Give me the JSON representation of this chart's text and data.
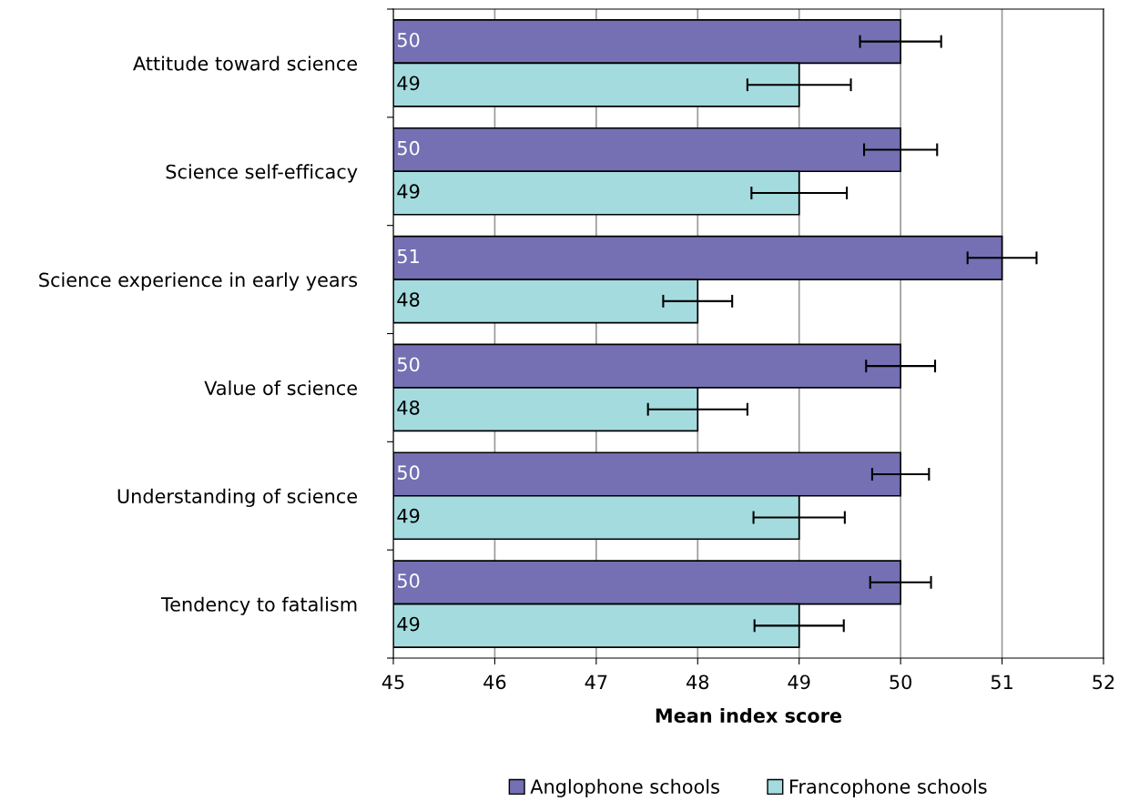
{
  "chart_data": {
    "type": "bar",
    "orientation": "horizontal",
    "xlabel": "Mean index score",
    "categories": [
      "Attitude toward science",
      "Science self-efficacy",
      "Science experience in early years",
      "Value of science",
      "Understanding of science",
      "Tendency to fatalism"
    ],
    "series": [
      {
        "name": "Anglophone schools",
        "color": "#7470b3",
        "values": [
          50,
          50,
          51,
          50,
          50,
          50
        ],
        "errors": [
          0.4,
          0.36,
          0.34,
          0.34,
          0.28,
          0.3
        ]
      },
      {
        "name": "Francophone schools",
        "color": "#a4dbdf",
        "values": [
          49,
          49,
          48,
          48,
          49,
          49
        ],
        "errors": [
          0.51,
          0.47,
          0.34,
          0.49,
          0.45,
          0.44
        ]
      }
    ],
    "xlim": [
      45,
      52
    ],
    "xticks": [
      45,
      46,
      47,
      48,
      49,
      50,
      51,
      52
    ],
    "grid": "x",
    "legend": "bottom",
    "data_labels": true
  }
}
